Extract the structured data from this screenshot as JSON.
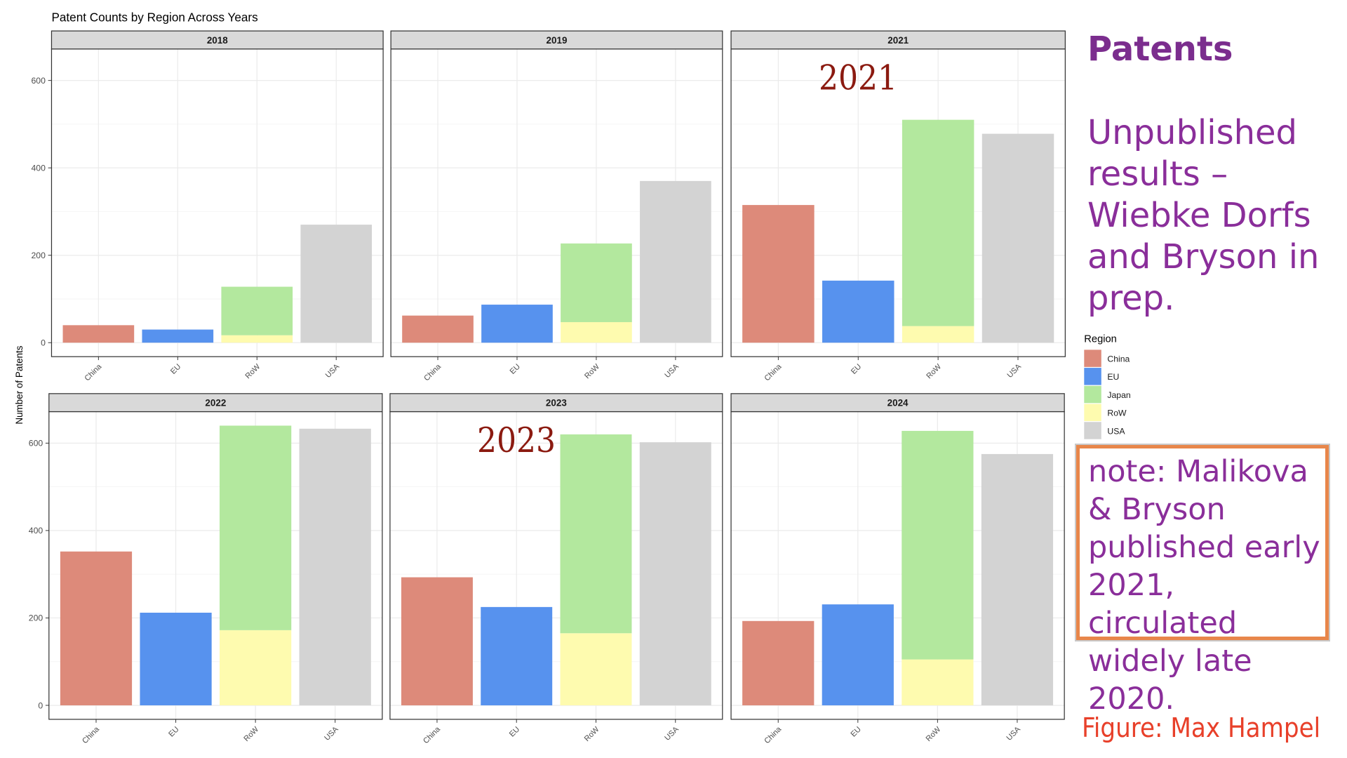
{
  "figure": {
    "title": "Patent Counts by Region Across Years",
    "y_label": "Number of Patents",
    "legend_title": "Region"
  },
  "sidebar": {
    "title": "Patents",
    "text": "Unpublished results – Wiebke Dorfs and Bryson in prep.",
    "note": "note: Malikova & Bryson published early 2021, circulated widely late 2020.",
    "credit": "Figure: Max Hampel"
  },
  "chart_data": [
    {
      "type": "bar",
      "title": "2018",
      "categories": [
        "China",
        "EU",
        "RoW",
        "USA"
      ],
      "ylim": [
        -32,
        672
      ],
      "yticks": [
        0,
        200,
        400,
        600
      ],
      "grid": true,
      "series": [
        {
          "name": "China",
          "color": "#dd8a7a",
          "values": [
            40,
            null,
            null,
            null
          ]
        },
        {
          "name": "EU",
          "color": "#5792ee",
          "values": [
            null,
            30,
            null,
            null
          ]
        },
        {
          "name": "Japan",
          "color": "#b3e89e",
          "values": [
            null,
            null,
            111,
            null
          ]
        },
        {
          "name": "RoW",
          "color": "#fefbaf",
          "values": [
            null,
            null,
            17,
            null
          ]
        },
        {
          "name": "USA",
          "color": "#d3d3d3",
          "values": [
            null,
            null,
            null,
            270
          ]
        }
      ]
    },
    {
      "type": "bar",
      "title": "2019",
      "categories": [
        "China",
        "EU",
        "RoW",
        "USA"
      ],
      "ylim": [
        -32,
        672
      ],
      "yticks": [
        0,
        200,
        400,
        600
      ],
      "grid": true,
      "series": [
        {
          "name": "China",
          "color": "#dd8a7a",
          "values": [
            62,
            null,
            null,
            null
          ]
        },
        {
          "name": "EU",
          "color": "#5792ee",
          "values": [
            null,
            87,
            null,
            null
          ]
        },
        {
          "name": "Japan",
          "color": "#b3e89e",
          "values": [
            null,
            null,
            180,
            null
          ]
        },
        {
          "name": "RoW",
          "color": "#fefbaf",
          "values": [
            null,
            null,
            47,
            null
          ]
        },
        {
          "name": "USA",
          "color": "#d3d3d3",
          "values": [
            null,
            null,
            null,
            370
          ]
        }
      ]
    },
    {
      "type": "bar",
      "title": "2021",
      "annotation": "2021",
      "categories": [
        "China",
        "EU",
        "RoW",
        "USA"
      ],
      "ylim": [
        -32,
        672
      ],
      "yticks": [
        0,
        200,
        400,
        600
      ],
      "grid": true,
      "series": [
        {
          "name": "China",
          "color": "#dd8a7a",
          "values": [
            315,
            null,
            null,
            null
          ]
        },
        {
          "name": "EU",
          "color": "#5792ee",
          "values": [
            null,
            142,
            null,
            null
          ]
        },
        {
          "name": "Japan",
          "color": "#b3e89e",
          "values": [
            null,
            null,
            472,
            null
          ]
        },
        {
          "name": "RoW",
          "color": "#fefbaf",
          "values": [
            null,
            null,
            38,
            null
          ]
        },
        {
          "name": "USA",
          "color": "#d3d3d3",
          "values": [
            null,
            null,
            null,
            478
          ]
        }
      ]
    },
    {
      "type": "bar",
      "title": "2022",
      "categories": [
        "China",
        "EU",
        "RoW",
        "USA"
      ],
      "ylim": [
        -32,
        672
      ],
      "yticks": [
        0,
        200,
        400,
        600
      ],
      "grid": true,
      "series": [
        {
          "name": "China",
          "color": "#dd8a7a",
          "values": [
            352,
            null,
            null,
            null
          ]
        },
        {
          "name": "EU",
          "color": "#5792ee",
          "values": [
            null,
            212,
            null,
            null
          ]
        },
        {
          "name": "Japan",
          "color": "#b3e89e",
          "values": [
            null,
            null,
            468,
            null
          ]
        },
        {
          "name": "RoW",
          "color": "#fefbaf",
          "values": [
            null,
            null,
            172,
            null
          ]
        },
        {
          "name": "USA",
          "color": "#d3d3d3",
          "values": [
            null,
            null,
            null,
            633
          ]
        }
      ]
    },
    {
      "type": "bar",
      "title": "2023",
      "annotation": "2023",
      "categories": [
        "China",
        "EU",
        "RoW",
        "USA"
      ],
      "ylim": [
        -32,
        672
      ],
      "yticks": [
        0,
        200,
        400,
        600
      ],
      "grid": true,
      "series": [
        {
          "name": "China",
          "color": "#dd8a7a",
          "values": [
            293,
            null,
            null,
            null
          ]
        },
        {
          "name": "EU",
          "color": "#5792ee",
          "values": [
            null,
            225,
            null,
            null
          ]
        },
        {
          "name": "Japan",
          "color": "#b3e89e",
          "values": [
            null,
            null,
            455,
            null
          ]
        },
        {
          "name": "RoW",
          "color": "#fefbaf",
          "values": [
            null,
            null,
            165,
            null
          ]
        },
        {
          "name": "USA",
          "color": "#d3d3d3",
          "values": [
            null,
            null,
            null,
            602
          ]
        }
      ]
    },
    {
      "type": "bar",
      "title": "2024",
      "categories": [
        "China",
        "EU",
        "RoW",
        "USA"
      ],
      "ylim": [
        -32,
        672
      ],
      "yticks": [
        0,
        200,
        400,
        600
      ],
      "grid": true,
      "series": [
        {
          "name": "China",
          "color": "#dd8a7a",
          "values": [
            193,
            null,
            null,
            null
          ]
        },
        {
          "name": "EU",
          "color": "#5792ee",
          "values": [
            null,
            231,
            null,
            null
          ]
        },
        {
          "name": "Japan",
          "color": "#b3e89e",
          "values": [
            null,
            null,
            523,
            null
          ]
        },
        {
          "name": "RoW",
          "color": "#fefbaf",
          "values": [
            null,
            null,
            105,
            null
          ]
        },
        {
          "name": "USA",
          "color": "#d3d3d3",
          "values": [
            null,
            null,
            null,
            575
          ]
        }
      ]
    }
  ]
}
